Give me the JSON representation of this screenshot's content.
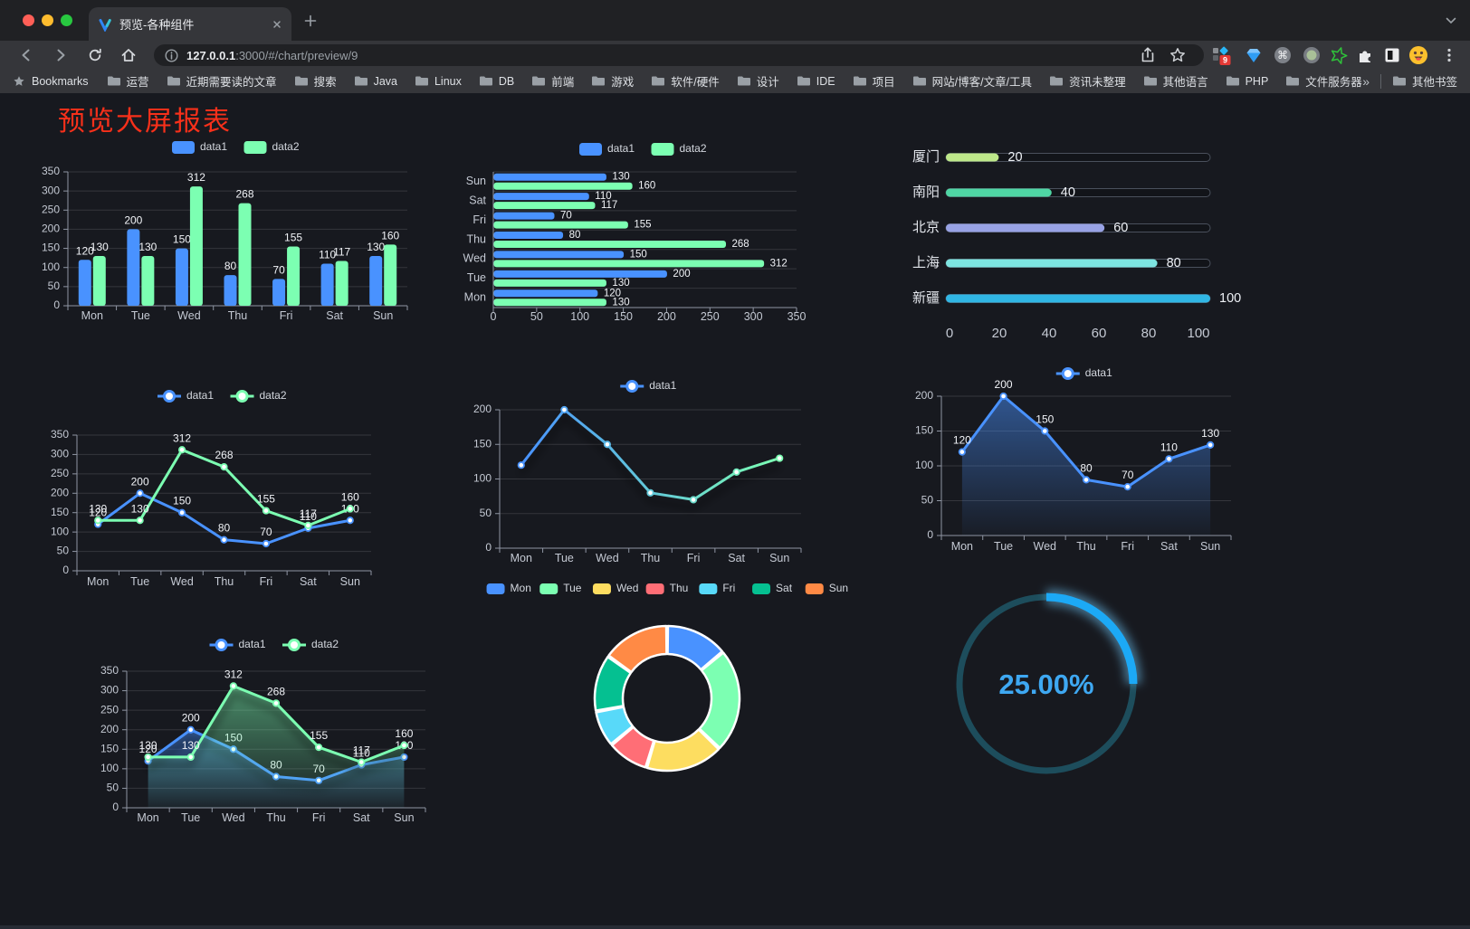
{
  "browser": {
    "tab_title": "预览-各种组件",
    "url_host": "127.0.0.1",
    "url_path": ":3000/#/chart/preview/9",
    "bookmarks_root": "Bookmarks",
    "bookmarks": [
      "运营",
      "近期需要读的文章",
      "搜索",
      "Java",
      "Linux",
      "DB",
      "前端",
      "游戏",
      "软件/硬件",
      "设计",
      "IDE",
      "项目",
      "网站/博客/文章/工具",
      "资讯未整理",
      "其他语言",
      "PHP",
      "文件服务器"
    ],
    "bookmarks_overflow": "»",
    "other_bookmarks": "其他书签",
    "extension_badge": "9"
  },
  "page": {
    "title": "预览大屏报表"
  },
  "chart_data": [
    {
      "id": "bar-grouped",
      "type": "bar",
      "orientation": "vertical",
      "categories": [
        "Mon",
        "Tue",
        "Wed",
        "Thu",
        "Fri",
        "Sat",
        "Sun"
      ],
      "series": [
        {
          "name": "data1",
          "color": "#4992ff",
          "values": [
            120,
            200,
            150,
            80,
            70,
            110,
            130
          ]
        },
        {
          "name": "data2",
          "color": "#7cffb2",
          "values": [
            130,
            130,
            312,
            268,
            155,
            117,
            160
          ]
        }
      ],
      "ylim": [
        0,
        350
      ],
      "yticks": [
        0,
        50,
        100,
        150,
        200,
        250,
        300,
        350
      ],
      "legend_position": "top",
      "grid": true,
      "value_labels": true
    },
    {
      "id": "hbar-grouped",
      "type": "bar",
      "orientation": "horizontal",
      "categories": [
        "Sun",
        "Sat",
        "Fri",
        "Thu",
        "Wed",
        "Tue",
        "Mon"
      ],
      "series": [
        {
          "name": "data1",
          "color": "#4992ff",
          "values": [
            130,
            110,
            70,
            80,
            150,
            200,
            120
          ]
        },
        {
          "name": "data2",
          "color": "#7cffb2",
          "values": [
            160,
            117,
            155,
            268,
            312,
            130,
            130
          ]
        }
      ],
      "xlim": [
        0,
        350
      ],
      "xticks": [
        0,
        50,
        100,
        150,
        200,
        250,
        300,
        350
      ],
      "legend_position": "top",
      "grid": true,
      "value_labels": true
    },
    {
      "id": "progress-bars",
      "type": "bar",
      "orientation": "horizontal",
      "variant": "progress",
      "items": [
        {
          "label": "厦门",
          "value": 20,
          "color": "#bee88a"
        },
        {
          "label": "南阳",
          "value": 40,
          "color": "#4fd6a4"
        },
        {
          "label": "北京",
          "value": 60,
          "color": "#98a2e4"
        },
        {
          "label": "上海",
          "value": 80,
          "color": "#7de4e0"
        },
        {
          "label": "新疆",
          "value": 100,
          "color": "#30b6e4"
        }
      ],
      "xlim": [
        0,
        100
      ],
      "xticks": [
        0,
        20,
        40,
        60,
        80,
        100
      ],
      "value_labels": true
    },
    {
      "id": "line-dual",
      "type": "line",
      "categories": [
        "Mon",
        "Tue",
        "Wed",
        "Thu",
        "Fri",
        "Sat",
        "Sun"
      ],
      "series": [
        {
          "name": "data1",
          "color": "#4992ff",
          "values": [
            120,
            200,
            150,
            80,
            70,
            110,
            130
          ]
        },
        {
          "name": "data2",
          "color": "#7cffb2",
          "values": [
            130,
            130,
            312,
            268,
            155,
            117,
            160
          ]
        }
      ],
      "ylim": [
        0,
        350
      ],
      "yticks": [
        0,
        50,
        100,
        150,
        200,
        250,
        300,
        350
      ],
      "legend_position": "top",
      "value_labels": true,
      "area": false,
      "shadow": false
    },
    {
      "id": "line-gradient",
      "type": "line",
      "categories": [
        "Mon",
        "Tue",
        "Wed",
        "Thu",
        "Fri",
        "Sat",
        "Sun"
      ],
      "series": [
        {
          "name": "data1",
          "color": "#4992ff",
          "color_gradient": [
            "#4992ff",
            "#7cffb2"
          ],
          "values": [
            120,
            200,
            150,
            80,
            70,
            110,
            130
          ]
        }
      ],
      "ylim": [
        0,
        200
      ],
      "yticks": [
        0,
        50,
        100,
        150,
        200
      ],
      "legend_position": "top",
      "value_labels": false,
      "area": false,
      "shadow": true
    },
    {
      "id": "area-single",
      "type": "area",
      "categories": [
        "Mon",
        "Tue",
        "Wed",
        "Thu",
        "Fri",
        "Sat",
        "Sun"
      ],
      "series": [
        {
          "name": "data1",
          "color": "#4992ff",
          "values": [
            120,
            200,
            150,
            80,
            70,
            110,
            130
          ]
        }
      ],
      "ylim": [
        0,
        200
      ],
      "yticks": [
        0,
        50,
        100,
        150,
        200
      ],
      "legend_position": "top",
      "value_labels": true,
      "area": true,
      "shadow": false
    },
    {
      "id": "area-dual",
      "type": "area",
      "categories": [
        "Mon",
        "Tue",
        "Wed",
        "Thu",
        "Fri",
        "Sat",
        "Sun"
      ],
      "series": [
        {
          "name": "data1",
          "color": "#4992ff",
          "values": [
            120,
            200,
            150,
            80,
            70,
            110,
            130
          ]
        },
        {
          "name": "data2",
          "color": "#7cffb2",
          "values": [
            130,
            130,
            312,
            268,
            155,
            117,
            160
          ]
        }
      ],
      "ylim": [
        0,
        350
      ],
      "yticks": [
        0,
        50,
        100,
        150,
        200,
        250,
        300,
        350
      ],
      "legend_position": "top",
      "value_labels": true,
      "area": true,
      "shadow": true
    },
    {
      "id": "donut",
      "type": "pie",
      "inner_radius_ratio": 0.61,
      "categories": [
        "Mon",
        "Tue",
        "Wed",
        "Thu",
        "Fri",
        "Sat",
        "Sun"
      ],
      "values": [
        120,
        200,
        150,
        80,
        70,
        110,
        130
      ],
      "colors": [
        "#4992ff",
        "#7cffb2",
        "#fddd60",
        "#ff6e76",
        "#58d9f9",
        "#05c091",
        "#ff8a45"
      ],
      "legend_position": "top"
    },
    {
      "id": "gauge",
      "type": "gauge",
      "value": 25,
      "max": 100,
      "label": "25.00%",
      "color": "#1ca9f6",
      "track_color": "#1d4d5c",
      "text_color": "#3ea8f2"
    }
  ]
}
